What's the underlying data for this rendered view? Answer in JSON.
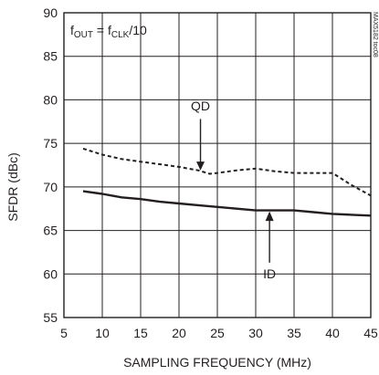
{
  "chart_data": {
    "type": "line",
    "title": "",
    "xlabel": "SAMPLING FREQUENCY (MHz)",
    "ylabel": "SFDR (dBc)",
    "xlim": [
      5,
      45
    ],
    "ylim": [
      55,
      90
    ],
    "x_ticks": [
      5,
      10,
      15,
      20,
      25,
      30,
      35,
      40,
      45
    ],
    "y_ticks": [
      55,
      60,
      65,
      70,
      75,
      80,
      85,
      90
    ],
    "grid": true,
    "annotation": {
      "prefix": "f",
      "prefix_sub": "OUT",
      "mid": " = f",
      "mid_sub": "CLK",
      "suffix": "/10"
    },
    "side_id": "MAX5182 toc08",
    "series": [
      {
        "name": "QD",
        "style": "dashed",
        "x": [
          7.5,
          10,
          12.5,
          15,
          17.5,
          20,
          22.5,
          24,
          25,
          27.5,
          30,
          32.5,
          35,
          37.5,
          40,
          42.5,
          45
        ],
        "y": [
          74.4,
          73.7,
          73.2,
          72.9,
          72.6,
          72.3,
          71.9,
          71.5,
          71.6,
          71.9,
          72.1,
          71.8,
          71.6,
          71.6,
          71.6,
          70.2,
          69.0
        ]
      },
      {
        "name": "ID",
        "style": "solid",
        "x": [
          7.5,
          10,
          12.5,
          15,
          17.5,
          20,
          22.5,
          25,
          27.5,
          30,
          32.5,
          35,
          37.5,
          40,
          42.5,
          45
        ],
        "y": [
          69.5,
          69.2,
          68.8,
          68.6,
          68.3,
          68.1,
          67.9,
          67.7,
          67.5,
          67.3,
          67.3,
          67.3,
          67.1,
          66.9,
          66.8,
          66.7
        ]
      }
    ]
  }
}
